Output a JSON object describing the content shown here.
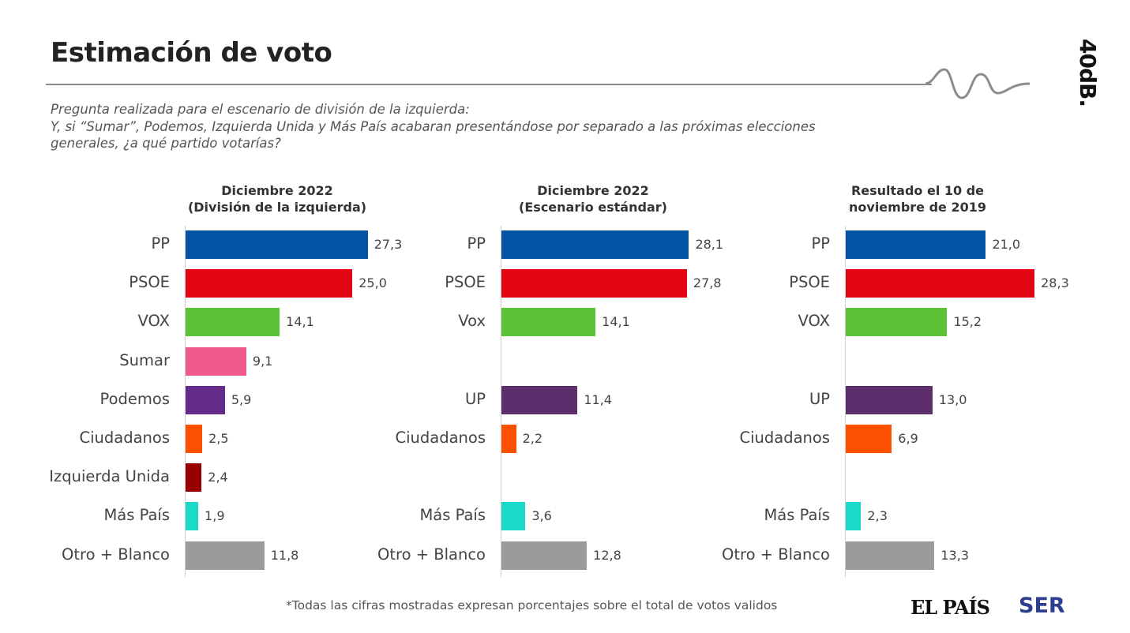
{
  "header": {
    "title": "Estimación de voto",
    "logo_text": "40dB."
  },
  "question": {
    "line1": "Pregunta realizada para el escenario de división de la izquierda:",
    "line2": "Y, si “Sumar”, Podemos, Izquierda Unida y Más País acabaran presentándose por separado a las próximas elecciones",
    "line3": "generales, ¿a qué partido votarías?"
  },
  "chart_data": [
    {
      "type": "bar",
      "title_lines": [
        "Diciembre 2022",
        "(División de la izquierda)"
      ],
      "categories": [
        "PP",
        "PSOE",
        "VOX",
        "Sumar",
        "Podemos",
        "Ciudadanos",
        "Izquierda Unida",
        "Más País",
        "Otro + Blanco"
      ],
      "values": [
        27.3,
        25.0,
        14.1,
        9.1,
        5.9,
        2.5,
        2.4,
        1.9,
        11.8
      ],
      "value_labels": [
        "27,3",
        "25,0",
        "14,1",
        "9,1",
        "5,9",
        "2,5",
        "2,4",
        "1,9",
        "11,8"
      ],
      "colors": [
        "#0553a4",
        "#e30613",
        "#5bc236",
        "#ef5b8c",
        "#652b8b",
        "#fd5000",
        "#990000",
        "#19d9c8",
        "#9b9b9b"
      ],
      "slots": [
        0,
        1,
        2,
        3,
        4,
        5,
        6,
        7,
        8
      ]
    },
    {
      "type": "bar",
      "title_lines": [
        "Diciembre 2022",
        "(Escenario estándar)"
      ],
      "categories": [
        "PP",
        "PSOE",
        "Vox",
        "UP",
        "Ciudadanos",
        "Más País",
        "Otro + Blanco"
      ],
      "values": [
        28.1,
        27.8,
        14.1,
        11.4,
        2.2,
        3.6,
        12.8
      ],
      "value_labels": [
        "28,1",
        "27,8",
        "14,1",
        "11,4",
        "2,2",
        "3,6",
        "12,8"
      ],
      "colors": [
        "#0553a4",
        "#e30613",
        "#5bc236",
        "#5c2e6b",
        "#fd5000",
        "#19d9c8",
        "#9b9b9b"
      ],
      "slots": [
        0,
        1,
        2,
        4,
        5,
        7,
        8
      ]
    },
    {
      "type": "bar",
      "title_lines": [
        "Resultado el 10 de",
        "noviembre de 2019"
      ],
      "categories": [
        "PP",
        "PSOE",
        "VOX",
        "UP",
        "Ciudadanos",
        "Más País",
        "Otro + Blanco"
      ],
      "values": [
        21.0,
        28.3,
        15.2,
        13.0,
        6.9,
        2.3,
        13.3
      ],
      "value_labels": [
        "21,0",
        "28,3",
        "15,2",
        "13,0",
        "6,9",
        "2,3",
        "13,3"
      ],
      "colors": [
        "#0553a4",
        "#e30613",
        "#5bc236",
        "#5c2e6b",
        "#fd5000",
        "#19d9c8",
        "#9b9b9b"
      ],
      "slots": [
        0,
        1,
        2,
        4,
        5,
        7,
        8
      ]
    }
  ],
  "footer": {
    "note": "*Todas las cifras mostradas expresan porcentajes sobre el total de votos validos",
    "brand1": "EL PAÍS",
    "brand2": "SER"
  }
}
